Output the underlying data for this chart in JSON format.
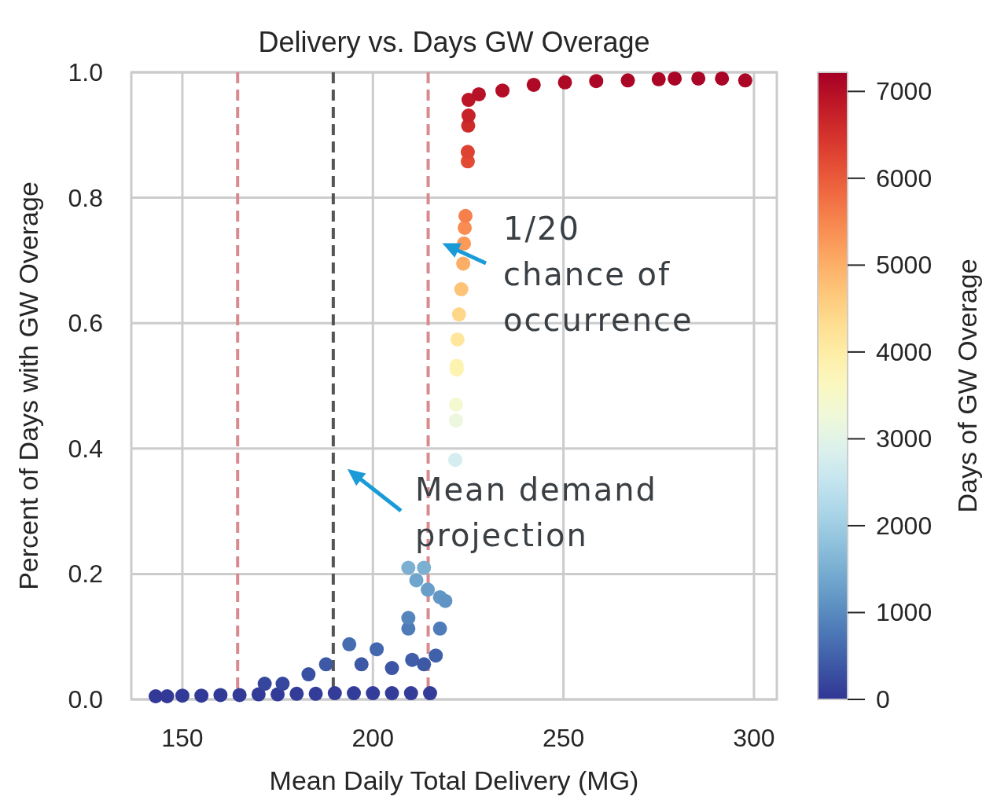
{
  "chart_data": {
    "type": "scatter",
    "title": "Delivery vs. Days GW Overage",
    "xlabel": "Mean Daily Total Delivery (MG)",
    "ylabel": "Percent of Days with GW Overage",
    "clabel": "Days of GW Overage",
    "xlim": [
      136.6,
      306
    ],
    "xticks": [
      150,
      200,
      250,
      300
    ],
    "ylim": [
      0,
      1
    ],
    "yticks": [
      {
        "value": 0,
        "label": "0.0"
      },
      {
        "value": 0.2,
        "label": "0.2"
      },
      {
        "value": 0.4,
        "label": "0.4"
      },
      {
        "value": 0.6,
        "label": "0.6"
      },
      {
        "value": 0.8,
        "label": "0.8"
      },
      {
        "value": 1,
        "label": "1.0"
      }
    ],
    "clim": [
      0,
      7220
    ],
    "cticks": [
      0,
      1000,
      2000,
      3000,
      4000,
      5000,
      6000,
      7000
    ],
    "grid": true,
    "marker": "circle",
    "series": [
      {
        "x": [
          143,
          146,
          150,
          155,
          160,
          165,
          170,
          175,
          180,
          185,
          190,
          195,
          200,
          205,
          210,
          215,
          171.6,
          176.3,
          183.1,
          187.7,
          193.8,
          201,
          197,
          205,
          209.3,
          210.3,
          213.4,
          216.5,
          217.6,
          217.6,
          219,
          209.3,
          214.4,
          209.3,
          213.4,
          211.4,
          221.6,
          221.8,
          221.8,
          222,
          222,
          222.2,
          222.6,
          223.2,
          223.7,
          223.9,
          224.1,
          224.3,
          224.9,
          224.9,
          225,
          225.1,
          225.1,
          227.8,
          234,
          242.2,
          250.4,
          258.6,
          266.9,
          275,
          279.2,
          285.4,
          291.6,
          297.7
        ],
        "values": [
          0.005,
          0.005,
          0.006,
          0.006,
          0.007,
          0.007,
          0.008,
          0.008,
          0.009,
          0.009,
          0.01,
          0.01,
          0.01,
          0.01,
          0.01,
          0.01,
          0.025,
          0.025,
          0.04,
          0.056,
          0.088,
          0.08,
          0.056,
          0.05,
          0.113,
          0.063,
          0.056,
          0.07,
          0.113,
          0.163,
          0.157,
          0.13,
          0.175,
          0.21,
          0.21,
          0.19,
          0.382,
          0.445,
          0.47,
          0.526,
          0.532,
          0.574,
          0.614,
          0.654,
          0.695,
          0.727,
          0.752,
          0.771,
          0.858,
          0.873,
          0.915,
          0.931,
          0.956,
          0.965,
          0.971,
          0.98,
          0.984,
          0.986,
          0.987,
          0.989,
          0.99,
          0.99,
          0.99,
          0.987
        ],
        "cvalues": [
          40,
          40,
          45,
          45,
          50,
          50,
          60,
          60,
          65,
          65,
          70,
          70,
          70,
          70,
          70,
          70,
          180,
          180,
          290,
          400,
          640,
          580,
          400,
          360,
          820,
          450,
          400,
          500,
          820,
          1180,
          1130,
          940,
          1260,
          1520,
          1520,
          1370,
          2760,
          3210,
          3390,
          3800,
          3840,
          4140,
          4430,
          4720,
          5020,
          5250,
          5430,
          5570,
          6190,
          6300,
          6610,
          6720,
          6900,
          6970,
          7010,
          7080,
          7100,
          7120,
          7130,
          7140,
          7150,
          7150,
          7150,
          7130
        ]
      }
    ],
    "ref_lines": [
      {
        "axis": "x",
        "value": 164.5,
        "color": "#d98a8f",
        "line_style": "dashed"
      },
      {
        "axis": "x",
        "value": 189.6,
        "color": "#555555",
        "line_style": "dashed"
      },
      {
        "axis": "x",
        "value": 214.5,
        "color": "#d98a8f",
        "line_style": "dashed"
      }
    ],
    "annotations": [
      {
        "text": "1/20\nchance of\noccurrence",
        "x": 214.5,
        "y": 0.74
      },
      {
        "text": "Mean demand\nprojection",
        "x": 189.6,
        "y": 0.38
      }
    ]
  }
}
